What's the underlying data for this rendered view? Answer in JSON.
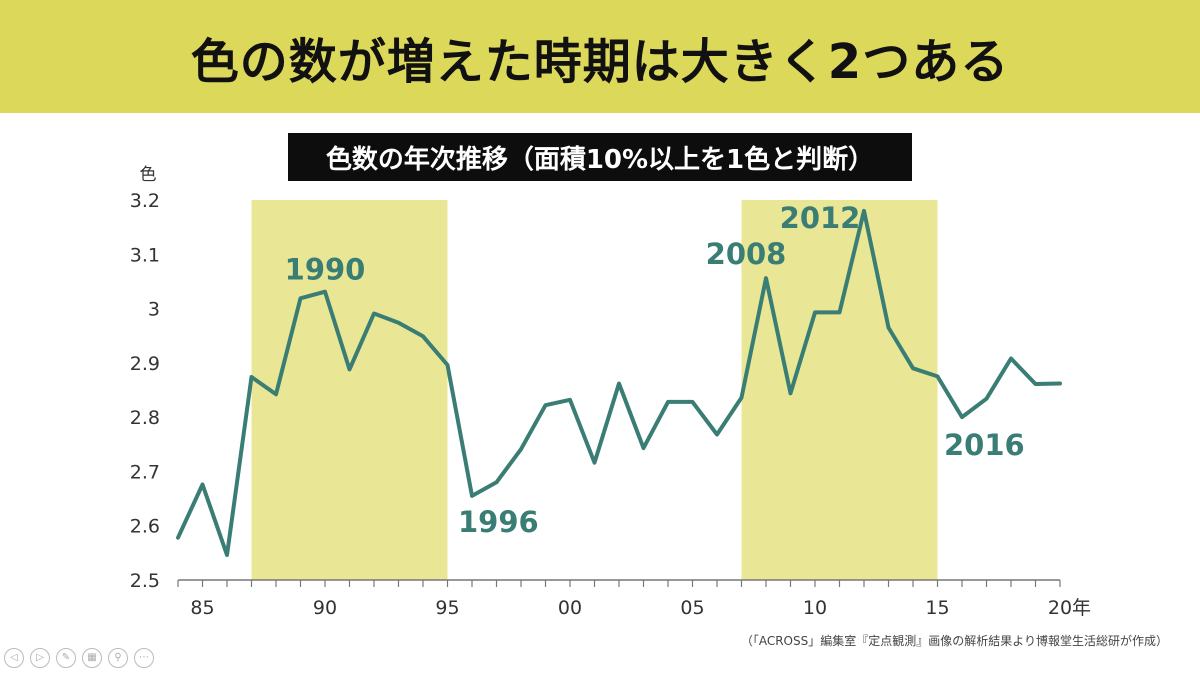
{
  "header": {
    "title": "色の数が増えた時期は大きく2つある"
  },
  "source_note": "（「ACROSS」編集室『定点観測』画像の解析結果より博報堂生活総研が作成）",
  "controls": [
    {
      "name": "prev-slide-icon",
      "glyph": "◁"
    },
    {
      "name": "next-slide-icon",
      "glyph": "▷"
    },
    {
      "name": "pen-icon",
      "glyph": "✎"
    },
    {
      "name": "slides-grid-icon",
      "glyph": "▦"
    },
    {
      "name": "zoom-icon",
      "glyph": "⚲"
    },
    {
      "name": "more-options-icon",
      "glyph": "⋯"
    }
  ],
  "chart_data": {
    "type": "line",
    "title": "色数の年次推移（面積10%以上を1色と判断）",
    "ylabel": "色",
    "xlabel_suffix": "年",
    "ylim": [
      2.5,
      3.2
    ],
    "xlim": [
      1984,
      2020
    ],
    "y_ticks": [
      "2.5",
      "2.6",
      "2.7",
      "2.8",
      "2.9",
      "3",
      "3.1",
      "3.2"
    ],
    "x_ticks": [
      {
        "year": 1985,
        "label": "85"
      },
      {
        "year": 1990,
        "label": "90"
      },
      {
        "year": 1995,
        "label": "95"
      },
      {
        "year": 2000,
        "label": "00"
      },
      {
        "year": 2005,
        "label": "05"
      },
      {
        "year": 2010,
        "label": "10"
      },
      {
        "year": 2015,
        "label": "15"
      },
      {
        "year": 2020,
        "label": "20"
      }
    ],
    "line_color": "#3a7d74",
    "highlight_color": "#e9e796",
    "highlights": [
      [
        1987,
        1995
      ],
      [
        2007,
        2015
      ]
    ],
    "series": [
      {
        "x": [
          1984,
          1985,
          1986,
          1987,
          1988,
          1989,
          1990,
          1991,
          1992,
          1993,
          1994,
          1995,
          1996,
          1997,
          1998,
          1999,
          2000,
          2001,
          2002,
          2003,
          2004,
          2005,
          2006,
          2007,
          2008,
          2009,
          2010,
          2011,
          2012,
          2013,
          2014,
          2015,
          2016,
          2017,
          2018,
          2019,
          2020
        ],
        "y": [
          2.578,
          2.676,
          2.546,
          2.874,
          2.842,
          3.019,
          3.031,
          2.888,
          2.991,
          2.974,
          2.949,
          2.896,
          2.655,
          2.68,
          2.741,
          2.822,
          2.832,
          2.716,
          2.862,
          2.743,
          2.828,
          2.828,
          2.768,
          2.836,
          3.056,
          2.844,
          2.993,
          2.993,
          3.18,
          2.965,
          2.89,
          2.875,
          2.8,
          2.834,
          2.908,
          2.861,
          2.862
        ]
      }
    ],
    "annotations": [
      {
        "text": "1990",
        "x": 1990,
        "y": 3.031
      },
      {
        "text": "1996",
        "x": 1996,
        "y": 2.655
      },
      {
        "text": "2008",
        "x": 2008,
        "y": 3.056
      },
      {
        "text": "2012",
        "x": 2012,
        "y": 3.18
      },
      {
        "text": "2016",
        "x": 2016,
        "y": 2.8
      }
    ]
  }
}
